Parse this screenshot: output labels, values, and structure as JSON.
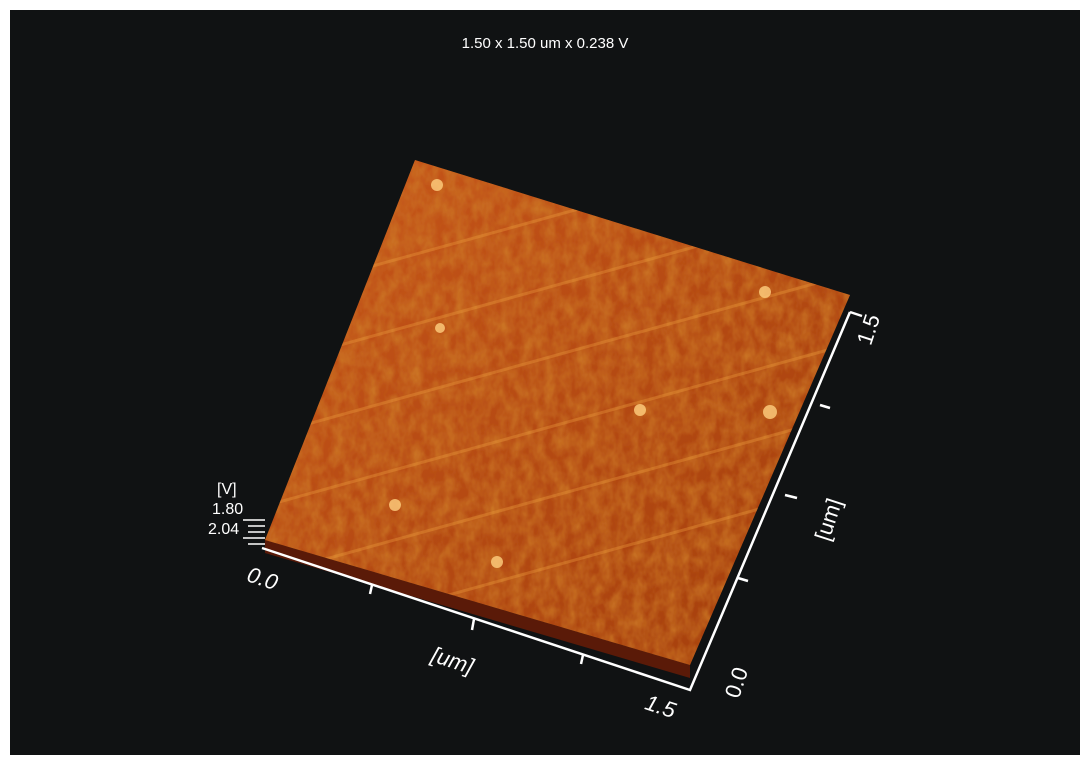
{
  "header": {
    "title": "1.50 x 1.50 um x 0.238 V"
  },
  "z_axis": {
    "unit": "[V]",
    "ticks": [
      "1.80",
      "2.04"
    ]
  },
  "x_axis": {
    "start": "0.0",
    "label": "[um]",
    "end": "1.5"
  },
  "y_axis": {
    "start": "0.0",
    "label": "[um]",
    "end": "1.5"
  }
}
